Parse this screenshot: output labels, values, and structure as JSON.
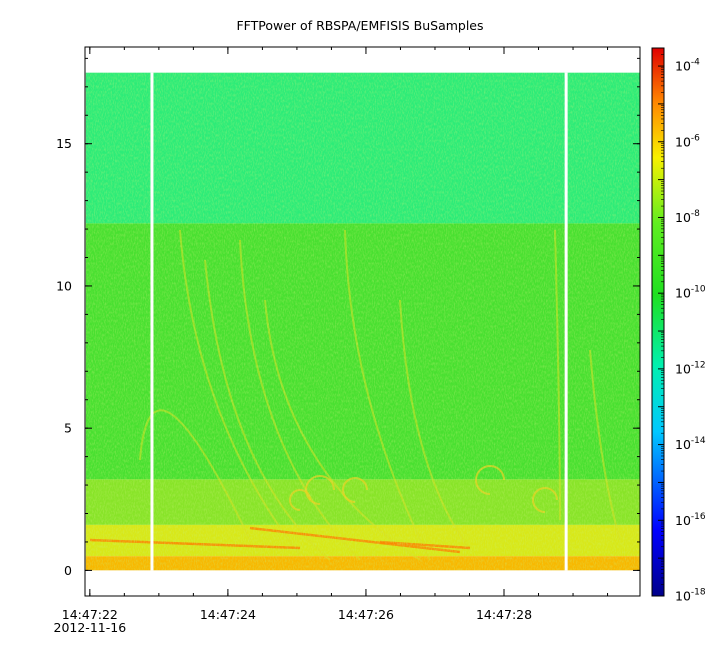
{
  "chart_data": {
    "type": "heatmap",
    "title": "FFTPower of RBSPA/EMFISIS  BuSamples",
    "xlabel": "",
    "ylabel": "",
    "x_start_label_line2": "2012-11-16",
    "x_ticks": [
      {
        "t": 0,
        "label": "14:47:22"
      },
      {
        "t": 2,
        "label": "14:47:24"
      },
      {
        "t": 4,
        "label": "14:47:26"
      },
      {
        "t": 6,
        "label": "14:47:28"
      }
    ],
    "x_minor_step_s": 0.5,
    "xlim_s": [
      -0.07,
      7.97
    ],
    "y_ticks": [
      0,
      5,
      10,
      15
    ],
    "y_minor_step": 1,
    "ylim": [
      -0.9,
      18.4
    ],
    "data_freq_range": [
      0,
      17.5
    ],
    "data_gaps_s": [
      0.9,
      6.9
    ],
    "band_edge": 12.2,
    "colorbar": {
      "scale": "log",
      "range": [
        1e-18,
        0.0003
      ],
      "tick_labels": [
        {
          "exp": -4,
          "base": "10",
          "sup": "-4"
        },
        {
          "exp": -6,
          "base": "10",
          "sup": "-6"
        },
        {
          "exp": -8,
          "base": "10",
          "sup": "-8"
        },
        {
          "exp": -10,
          "base": "10",
          "sup": "-10"
        },
        {
          "exp": -12,
          "base": "10",
          "sup": "-12"
        },
        {
          "exp": -14,
          "base": "10",
          "sup": "-14"
        },
        {
          "exp": -16,
          "base": "10",
          "sup": "-16"
        },
        {
          "exp": -18,
          "base": "10",
          "sup": "-18"
        }
      ]
    }
  }
}
